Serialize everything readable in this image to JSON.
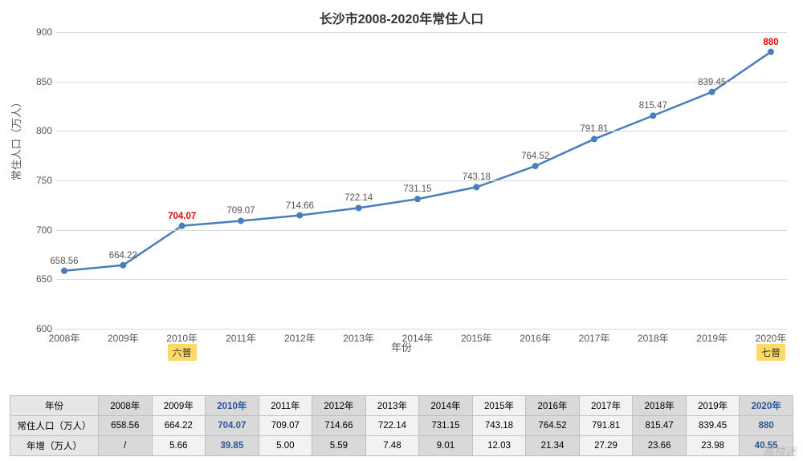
{
  "chart": {
    "title": "长沙市2008-2020年常住人口",
    "title_fontsize": 16,
    "y_label": "常住人口（万人）",
    "x_label": "年份",
    "label_fontsize": 13,
    "ylim": [
      600,
      900
    ],
    "ytick_step": 50,
    "yticks": [
      600,
      650,
      700,
      750,
      800,
      850,
      900
    ],
    "categories": [
      "2008年",
      "2009年",
      "2010年",
      "2011年",
      "2012年",
      "2013年",
      "2014年",
      "2015年",
      "2016年",
      "2017年",
      "2018年",
      "2019年",
      "2020年"
    ],
    "values": [
      658.56,
      664.22,
      704.07,
      709.07,
      714.66,
      722.14,
      731.15,
      743.18,
      764.52,
      791.81,
      815.47,
      839.45,
      880
    ],
    "value_labels": [
      "658.56",
      "664.22",
      "704.07",
      "709.07",
      "714.66",
      "722.14",
      "731.15",
      "743.18",
      "764.52",
      "791.81",
      "815.47",
      "839.45",
      "880"
    ],
    "highlight_indices": [
      2,
      12
    ],
    "badges": [
      {
        "index": 2,
        "text": "六普"
      },
      {
        "index": 12,
        "text": "七普"
      }
    ],
    "line_color": "#4a7ebb",
    "line_width": 2.5,
    "marker_color": "#4a7ebb",
    "marker_radius": 4,
    "grid_color": "#d9d9d9",
    "background_color": "#ffffff",
    "badge_bg": "#ffd966",
    "highlight_color": "#e60000",
    "tick_color": "#555555"
  },
  "table": {
    "row_headers": [
      "年份",
      "常住人口（万人）",
      "年增（万人）"
    ],
    "columns": [
      "2008年",
      "2009年",
      "2010年",
      "2011年",
      "2012年",
      "2013年",
      "2014年",
      "2015年",
      "2016年",
      "2017年",
      "2018年",
      "2019年",
      "2020年"
    ],
    "pop_row": [
      "658.56",
      "664.22",
      "704.07",
      "709.07",
      "714.66",
      "722.14",
      "731.15",
      "743.18",
      "764.52",
      "791.81",
      "815.47",
      "839.45",
      "880"
    ],
    "growth_row": [
      "/",
      "5.66",
      "39.85",
      "5.00",
      "5.59",
      "7.48",
      "9.01",
      "12.03",
      "21.34",
      "27.29",
      "23.66",
      "23.98",
      "40.55"
    ],
    "highlight_cols": [
      2,
      12
    ],
    "highlight_color": "#2f5597",
    "border_color": "#bfbfbf",
    "cell_bg": "#f2f2f2",
    "cell_alt_bg": "#d9d9d9",
    "header_bg": "#e6e6e6"
  },
  "watermark": "高楼迷"
}
